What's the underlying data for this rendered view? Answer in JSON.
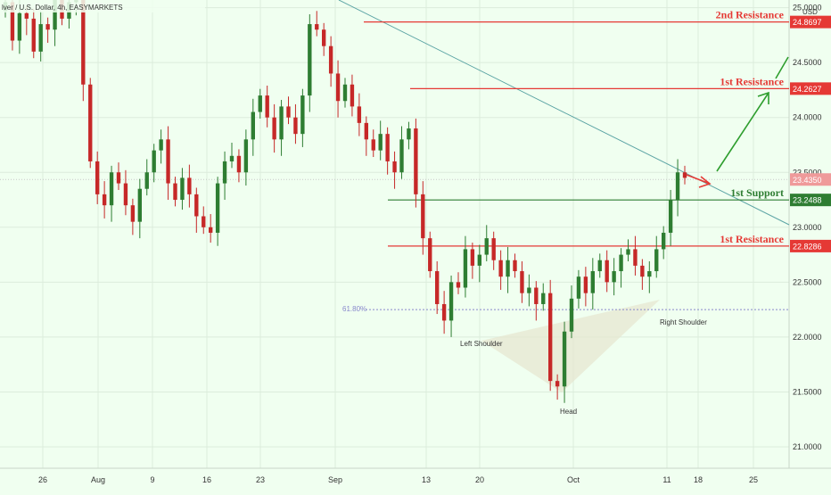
{
  "header": {
    "symbol_title": "lver / U.S. Dollar, 4h, EASYMARKETS",
    "currency": "USD"
  },
  "chart_data": {
    "type": "candlestick",
    "title": "",
    "xlabel": "",
    "ylabel": "",
    "ylim": [
      20.7,
      25.2
    ],
    "x_tick_labels": [
      "26",
      "Aug",
      "9",
      "16",
      "23",
      "Sep",
      "13",
      "20",
      "Oct",
      "11",
      "18",
      "25"
    ],
    "y_tick_labels": [
      "25.0000",
      "24.5000",
      "24.0000",
      "23.5000",
      "23.0000",
      "22.5000",
      "22.0000",
      "21.5000",
      "21.0000"
    ],
    "last_price": 23.435,
    "price_labels": [
      {
        "value": 24.8697,
        "text": "24.8697",
        "color": "#e53935"
      },
      {
        "value": 24.2627,
        "text": "24.2627",
        "color": "#e53935"
      },
      {
        "value": 23.435,
        "text": "23.4350",
        "color": "#ef9a9a"
      },
      {
        "value": 23.2488,
        "text": "23.2488",
        "color": "#2e7d32"
      },
      {
        "value": 22.8286,
        "text": "22.8286",
        "color": "#e53935"
      }
    ],
    "levels": [
      {
        "name": "2nd Resistance",
        "value": 24.8697,
        "color": "#e53935"
      },
      {
        "name": "1st Resistance",
        "value": 24.2627,
        "color": "#e53935"
      },
      {
        "name": "1st Support",
        "value": 23.2488,
        "color": "#2e7d32"
      },
      {
        "name": "1st Resistance",
        "value": 22.8286,
        "color": "#e53935"
      }
    ],
    "fib_label": "61.80%",
    "fib_level": 22.25,
    "pattern_labels": {
      "left_shoulder": "Left Shoulder",
      "head": "Head",
      "right_shoulder": "Right Shoulder"
    },
    "colors": {
      "up": "#2e7d32",
      "down": "#c62828",
      "trendline": "#5ba4a4",
      "arrow_red": "#e53935",
      "arrow_green": "#2e9e2e"
    },
    "series": [
      {
        "name": "",
        "values": [
          25.05,
          24.7,
          24.95,
          24.9,
          24.6,
          24.85,
          24.8,
          25.1,
          24.9,
          25.05,
          25.1,
          24.3,
          23.6,
          23.3,
          23.2,
          23.5,
          23.4,
          23.2,
          23.05,
          23.35,
          23.5,
          23.7,
          23.8,
          23.4,
          23.25,
          23.45,
          23.3,
          23.1,
          23.0,
          22.95,
          23.4,
          23.6,
          23.65,
          23.5,
          23.8,
          24.05,
          24.2,
          24.0,
          23.8,
          24.1,
          24.0,
          23.85,
          24.2,
          24.85,
          24.8,
          24.65,
          24.4,
          24.15,
          24.3,
          24.1,
          23.95,
          23.8,
          23.7,
          23.85,
          23.6,
          23.5,
          23.8,
          23.9,
          23.3,
          22.9,
          22.6,
          22.3,
          22.15,
          22.5,
          22.45,
          22.8,
          22.65,
          22.75,
          22.9,
          22.7,
          22.55,
          22.7,
          22.6,
          22.4,
          22.45,
          22.3,
          22.4,
          21.6,
          21.55,
          22.05,
          22.35,
          22.55,
          22.4,
          22.6,
          22.7,
          22.5,
          22.6,
          22.75,
          22.8,
          22.65,
          22.55,
          22.6,
          22.8,
          22.95,
          23.25,
          23.5,
          23.45
        ]
      }
    ]
  }
}
